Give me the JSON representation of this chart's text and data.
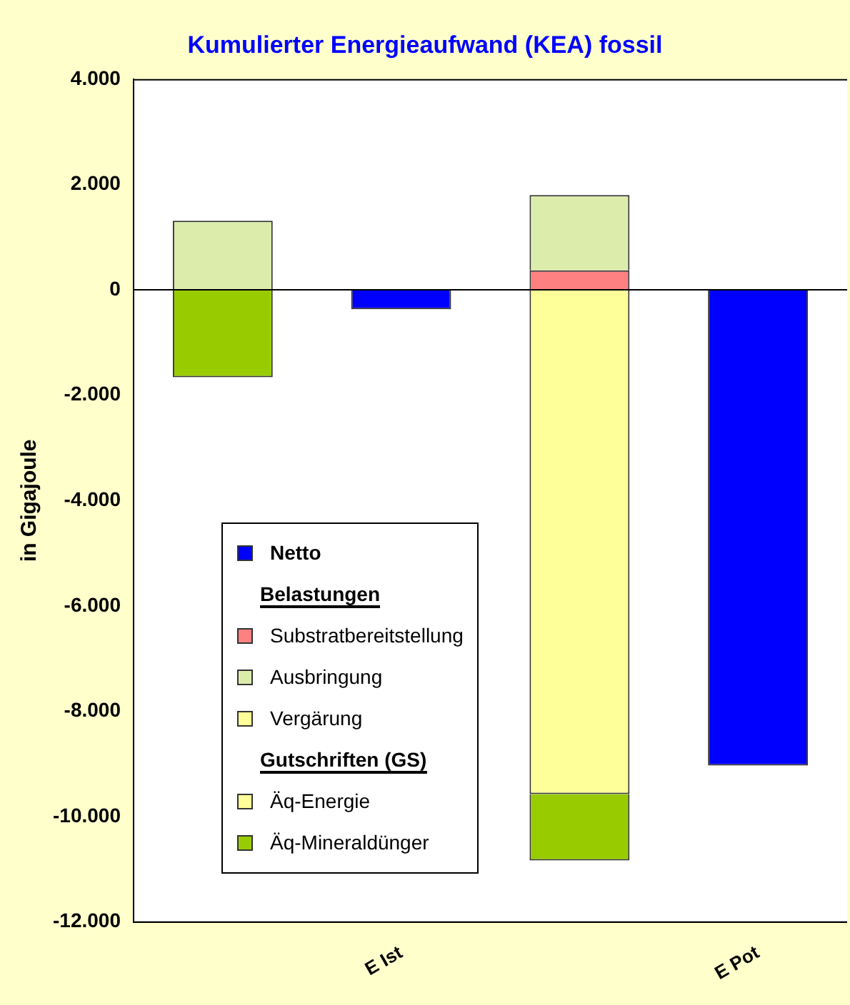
{
  "chart_data": {
    "type": "bar",
    "title": "Kumulierter Energieaufwand (KEA) fossil",
    "ylabel": "in Gigajoule",
    "categories": [
      null,
      "E Ist",
      null,
      "E Pot"
    ],
    "stacked": true,
    "series": [
      {
        "name": "Netto",
        "color": "#0000ff",
        "values": [
          null,
          -370,
          null,
          -9030
        ]
      },
      {
        "name": "Substratbereitstellung",
        "color": "#ff8080",
        "values": [
          null,
          null,
          370,
          null
        ]
      },
      {
        "name": "Ausbringung",
        "color": "#dcecaa",
        "values": [
          1310,
          null,
          1430,
          null
        ]
      },
      {
        "name": "Vergärung",
        "color": "#ffff99",
        "values": [
          null,
          null,
          null,
          null
        ]
      },
      {
        "name": "Äq-Energie",
        "color": "#ffff99",
        "values": [
          null,
          null,
          -9570,
          null
        ]
      },
      {
        "name": "Äq-Mineraldünger",
        "color": "#99cc00",
        "values": [
          -1660,
          null,
          -1260,
          null
        ]
      }
    ],
    "annotations": [
      "Belastungen",
      "Gutschriften (GS)"
    ],
    "ylim": [
      -12000,
      4000
    ],
    "yticks": [
      {
        "value": -12000,
        "label": "-12.000"
      },
      {
        "value": -10000,
        "label": "-10.000"
      },
      {
        "value": -8000,
        "label": "-8.000"
      },
      {
        "value": -6000,
        "label": "-6.000"
      },
      {
        "value": -4000,
        "label": "-4.000"
      },
      {
        "value": -2000,
        "label": "-2.000"
      },
      0,
      {
        "value": 2000,
        "label": "2.000"
      },
      {
        "value": 4000,
        "label": "4.000"
      }
    ],
    "legend": "bottom left"
  }
}
